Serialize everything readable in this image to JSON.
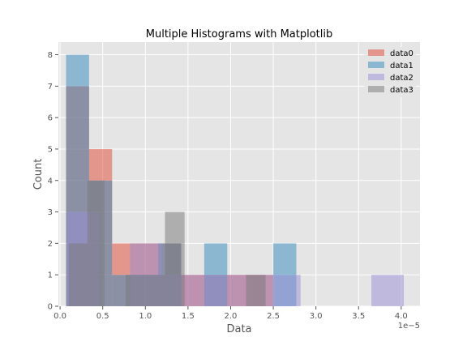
{
  "chart_data": {
    "type": "histogram",
    "title": "Multiple Histograms with Matplotlib",
    "xlabel": "Data",
    "ylabel": "Count",
    "x_offset_label": "1e−5",
    "xlim": [
      -0.02,
      4.22
    ],
    "ylim": [
      0,
      8.4
    ],
    "xticks": [
      0,
      0.5,
      1.0,
      1.5,
      2.0,
      2.5,
      3.0,
      3.5,
      4.0
    ],
    "xtick_labels": [
      "0.0",
      "0.5",
      "1.0",
      "1.5",
      "2.0",
      "2.5",
      "3.0",
      "3.5",
      "4.0"
    ],
    "yticks": [
      0,
      1,
      2,
      3,
      4,
      5,
      6,
      7,
      8
    ],
    "ytick_labels": [
      "0",
      "1",
      "2",
      "3",
      "4",
      "5",
      "6",
      "7",
      "8"
    ],
    "grid": true,
    "legend_position": "top-right",
    "series": [
      {
        "name": "data0",
        "color": "#E24A33",
        "bins": [
          {
            "x0": 0.07,
            "x1": 0.34,
            "count": 7
          },
          {
            "x0": 0.34,
            "x1": 0.61,
            "count": 5
          },
          {
            "x0": 0.61,
            "x1": 0.88,
            "count": 2
          },
          {
            "x0": 0.88,
            "x1": 1.15,
            "count": 2
          },
          {
            "x0": 1.15,
            "x1": 1.42,
            "count": 2
          },
          {
            "x0": 1.42,
            "x1": 1.69,
            "count": 1
          },
          {
            "x0": 1.69,
            "x1": 1.96,
            "count": 1
          },
          {
            "x0": 1.96,
            "x1": 2.23,
            "count": 1
          },
          {
            "x0": 2.23,
            "x1": 2.5,
            "count": 1
          }
        ]
      },
      {
        "name": "data1",
        "color": "#348ABD",
        "bins": [
          {
            "x0": 0.07,
            "x1": 0.34,
            "count": 8
          },
          {
            "x0": 0.34,
            "x1": 0.61,
            "count": 4
          },
          {
            "x0": 0.61,
            "x1": 0.88,
            "count": 1
          },
          {
            "x0": 0.88,
            "x1": 1.15,
            "count": 1
          },
          {
            "x0": 1.15,
            "x1": 1.42,
            "count": 2
          },
          {
            "x0": 1.42,
            "x1": 1.69,
            "count": 0
          },
          {
            "x0": 1.69,
            "x1": 1.96,
            "count": 2
          },
          {
            "x0": 1.96,
            "x1": 2.23,
            "count": 0
          },
          {
            "x0": 2.23,
            "x1": 2.5,
            "count": 0
          },
          {
            "x0": 2.5,
            "x1": 2.77,
            "count": 2
          }
        ]
      },
      {
        "name": "data2",
        "color": "#988ED5",
        "bins": [
          {
            "x0": 0.08,
            "x1": 0.45,
            "count": 3
          },
          {
            "x0": 0.45,
            "x1": 0.82,
            "count": 0
          },
          {
            "x0": 0.82,
            "x1": 1.19,
            "count": 2
          },
          {
            "x0": 1.19,
            "x1": 1.44,
            "count": 1
          },
          {
            "x0": 1.44,
            "x1": 1.81,
            "count": 1
          },
          {
            "x0": 1.81,
            "x1": 2.18,
            "count": 1
          },
          {
            "x0": 2.18,
            "x1": 2.45,
            "count": 1
          },
          {
            "x0": 2.45,
            "x1": 2.82,
            "count": 1
          },
          {
            "x0": 2.82,
            "x1": 3.19,
            "count": 0
          },
          {
            "x0": 3.19,
            "x1": 3.65,
            "count": 0
          },
          {
            "x0": 3.65,
            "x1": 4.03,
            "count": 1
          }
        ]
      },
      {
        "name": "data3",
        "color": "#777777",
        "bins": [
          {
            "x0": 0.1,
            "x1": 0.32,
            "count": 2
          },
          {
            "x0": 0.32,
            "x1": 0.52,
            "count": 4
          },
          {
            "x0": 0.52,
            "x1": 0.77,
            "count": 0
          },
          {
            "x0": 0.77,
            "x1": 1.0,
            "count": 1
          },
          {
            "x0": 1.0,
            "x1": 1.23,
            "count": 1
          },
          {
            "x0": 1.23,
            "x1": 1.46,
            "count": 3
          },
          {
            "x0": 1.46,
            "x1": 1.71,
            "count": 0
          },
          {
            "x0": 1.71,
            "x1": 1.96,
            "count": 0
          },
          {
            "x0": 1.96,
            "x1": 2.18,
            "count": 0
          },
          {
            "x0": 2.18,
            "x1": 2.41,
            "count": 1
          }
        ]
      }
    ]
  }
}
